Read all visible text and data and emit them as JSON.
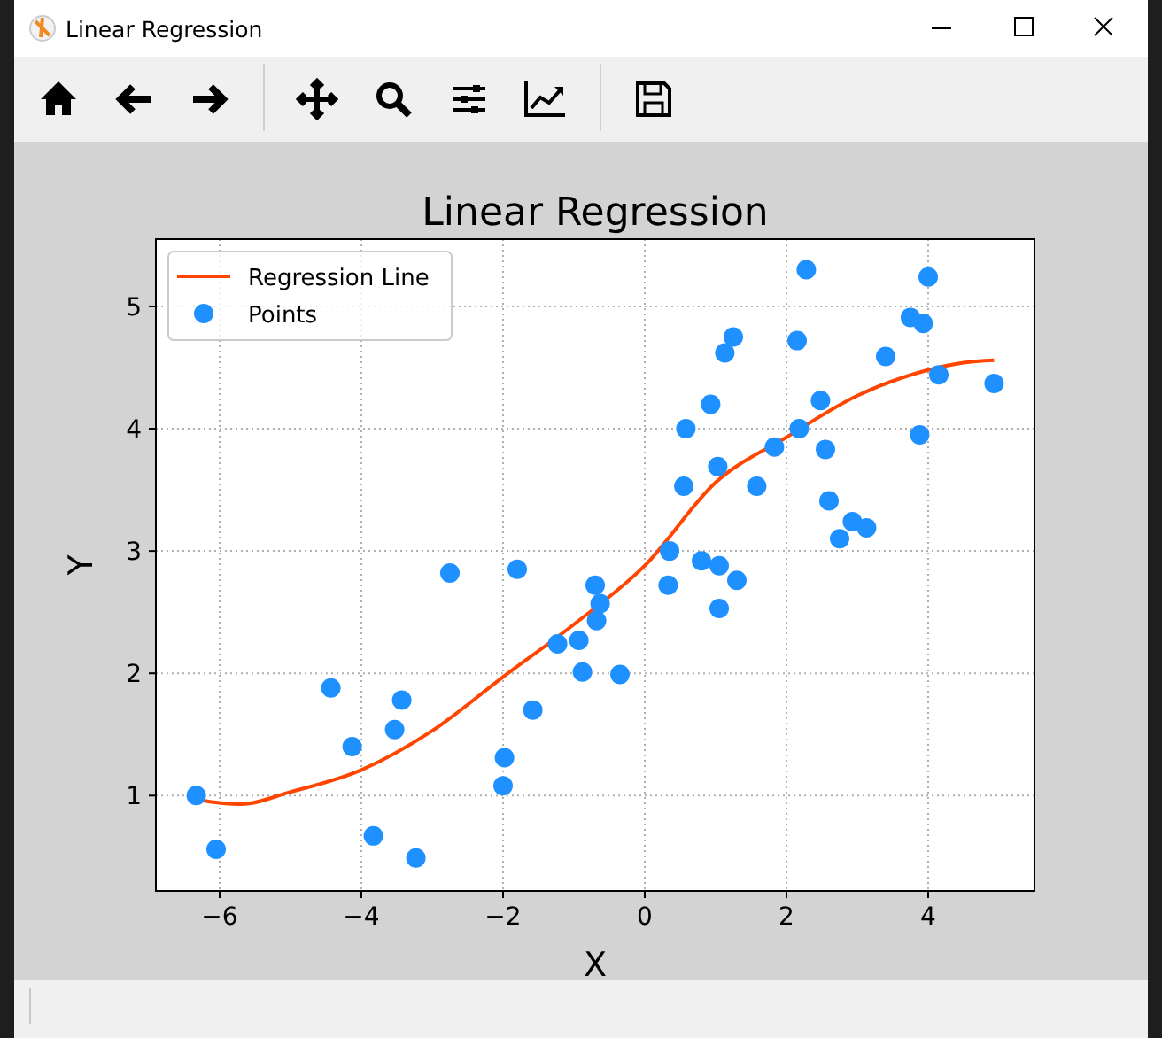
{
  "chart_data": {
    "type": "scatter",
    "title": "Linear Regression",
    "xlabel": "X",
    "ylabel": "Y",
    "annotations": [
      "Linear Regression"
    ],
    "xlim": [
      -6.9,
      5.5
    ],
    "xticks": [
      {
        "value": -6,
        "label": "−6"
      },
      {
        "value": -4,
        "label": "−4"
      },
      {
        "value": -2,
        "label": "−2"
      },
      0,
      2,
      4
    ],
    "ylim": [
      0.22,
      5.55
    ],
    "yticks": [
      1,
      2,
      3,
      4,
      5
    ],
    "grid": true,
    "legend": "top left",
    "line_style": "solid",
    "series": [
      {
        "name": "Regression Line",
        "type": "line",
        "color": "#ff4500",
        "x": [
          -6.33,
          -6,
          -5.7,
          -5,
          -4,
          -3,
          -2,
          -1,
          0,
          1,
          2,
          3,
          4,
          4.5,
          4.93
        ],
        "values": [
          0.97,
          0.94,
          0.93,
          1.03,
          1.21,
          1.53,
          1.97,
          2.4,
          2.88,
          3.56,
          3.93,
          4.27,
          4.48,
          4.54,
          4.56
        ]
      },
      {
        "name": "Points",
        "marker": "circle",
        "color": "#1e90ff",
        "x": [
          -6.33,
          -6.05,
          -4.43,
          -4.13,
          -3.83,
          -3.53,
          -3.43,
          -3.23,
          -2.75,
          -2.0,
          -1.98,
          -1.8,
          -1.58,
          -1.23,
          -0.93,
          -0.88,
          -0.7,
          -0.68,
          -0.63,
          -0.35,
          0.33,
          0.35,
          0.55,
          0.58,
          0.8,
          0.93,
          1.03,
          1.05,
          1.05,
          1.13,
          1.25,
          1.3,
          1.58,
          1.83,
          2.15,
          2.18,
          2.28,
          2.48,
          2.55,
          2.6,
          2.75,
          2.93,
          3.13,
          3.4,
          3.75,
          3.88,
          3.93,
          4.0,
          4.15,
          4.93
        ],
        "values": [
          1.0,
          0.56,
          1.88,
          1.4,
          0.67,
          1.54,
          1.78,
          0.49,
          2.82,
          1.08,
          1.31,
          2.85,
          1.7,
          2.24,
          2.27,
          2.01,
          2.72,
          2.43,
          2.57,
          1.99,
          2.72,
          3.0,
          3.53,
          4.0,
          2.92,
          4.2,
          3.69,
          2.88,
          2.53,
          4.62,
          4.75,
          2.76,
          3.53,
          3.85,
          4.72,
          4.0,
          5.3,
          4.23,
          3.83,
          3.41,
          3.1,
          3.24,
          3.19,
          4.59,
          4.91,
          3.95,
          4.86,
          5.24,
          4.44,
          4.37
        ]
      }
    ]
  }
}
